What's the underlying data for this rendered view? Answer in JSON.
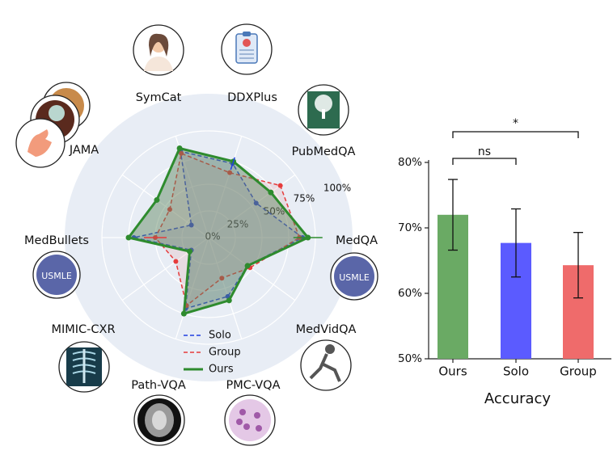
{
  "chart_data": [
    {
      "type": "radar",
      "axes": [
        "MedQA",
        "PubMedQA",
        "DDXPlus",
        "SymCat",
        "JAMA",
        "MedBullets",
        "MIMIC-CXR",
        "Path-VQA",
        "PMC-VQA",
        "MedVidQA"
      ],
      "radial_ticks": [
        "0%",
        "25%",
        "50%",
        "75%",
        "100%"
      ],
      "rlim": [
        0,
        100
      ],
      "series": [
        {
          "name": "Solo",
          "color": "#1f3fe0",
          "style": "dashed",
          "values": [
            88,
            55,
            73,
            85,
            20,
            70,
            20,
            70,
            58,
            45
          ]
        },
        {
          "name": "Group",
          "color": "#e63b3b",
          "style": "dashed",
          "values": [
            85,
            83,
            64,
            83,
            45,
            50,
            38,
            67,
            40,
            48
          ]
        },
        {
          "name": "Ours",
          "color": "#2e8b2e",
          "style": "solid",
          "values": [
            93,
            72,
            75,
            88,
            60,
            75,
            22,
            75,
            62,
            45
          ]
        }
      ],
      "legend": "bottom-center",
      "grid": true
    },
    {
      "type": "bar",
      "xlabel": "Accuracy",
      "categories": [
        "Ours",
        "Solo",
        "Group"
      ],
      "values": [
        72.0,
        67.7,
        64.3
      ],
      "errors": [
        5.4,
        5.2,
        5.0
      ],
      "colors": [
        "#6aaa64",
        "#5b5bff",
        "#ef6b6b"
      ],
      "yticks": [
        "50%",
        "60%",
        "70%",
        "80%"
      ],
      "ylim": [
        50,
        83
      ],
      "significance": [
        {
          "pair": [
            "Ours",
            "Solo"
          ],
          "label": "ns"
        },
        {
          "pair": [
            "Ours",
            "Group"
          ],
          "label": "*"
        }
      ]
    }
  ]
}
